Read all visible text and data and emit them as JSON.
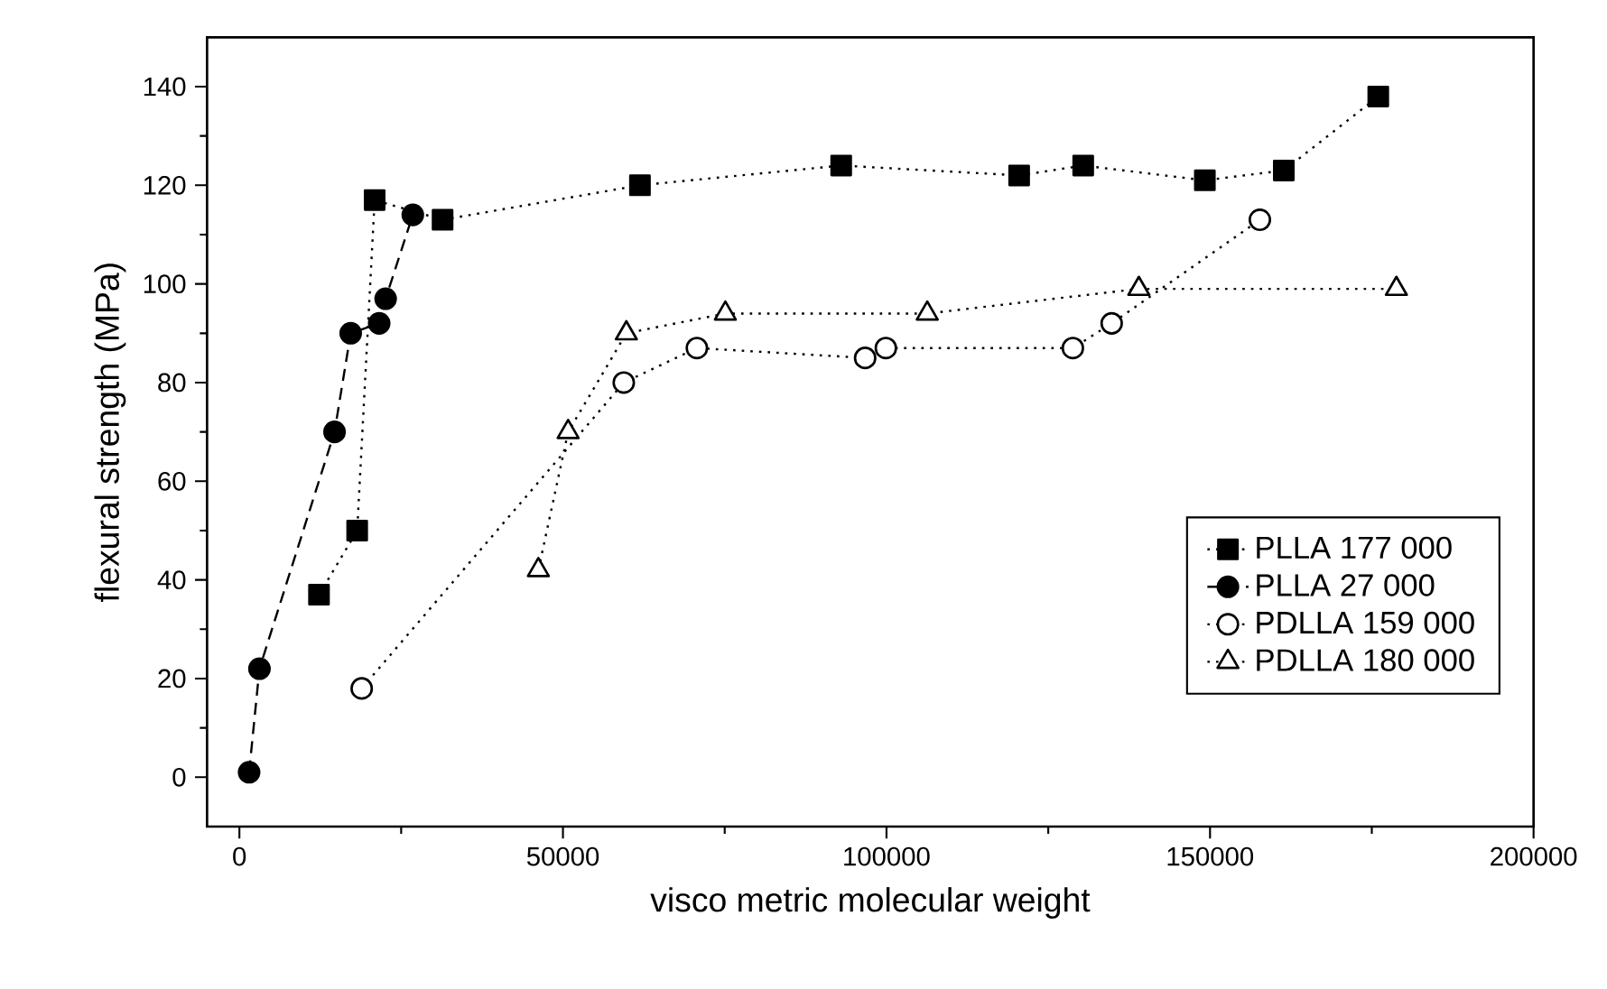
{
  "chart_data": {
    "type": "line",
    "xlabel": "visco  metric molecular weight",
    "ylabel": "flexural strength (MPa)",
    "xlim": [
      -5000,
      200000
    ],
    "xticks": [
      0,
      50000,
      100000,
      150000,
      200000
    ],
    "ylim": [
      -10,
      150
    ],
    "yticks": [
      0,
      20,
      40,
      60,
      80,
      100,
      120,
      140
    ],
    "legend": "right",
    "grid": false,
    "series": [
      {
        "name": "PLLA 177 000",
        "color": "#000000",
        "marker": "square",
        "line_style": "dotted",
        "x": [
          12300,
          18200,
          20900,
          31400,
          61900,
          93000,
          120500,
          130400,
          149200,
          161400,
          176000
        ],
        "values": [
          37,
          50,
          117,
          113,
          120,
          124,
          122,
          124,
          121,
          123,
          138
        ]
      },
      {
        "name": "PLLA 27 000",
        "color": "#000000",
        "marker": "circle",
        "line_style": "dashed",
        "x": [
          1500,
          3100,
          14700,
          17200,
          21600,
          22600,
          26800
        ],
        "values": [
          1,
          22,
          70,
          90,
          92,
          97,
          114
        ]
      },
      {
        "name": "PDLLA 159 000",
        "color": "#000000",
        "marker": "circle",
        "line_style": "dotted",
        "x": [
          18900,
          59400,
          70700,
          96700,
          99900,
          128800,
          134800,
          157700
        ],
        "values": [
          18,
          80,
          87,
          85,
          87,
          87,
          92,
          113
        ]
      },
      {
        "name": "PDLLA 180 000",
        "color": "#000000",
        "marker": "triangle",
        "line_style": "dotted",
        "x": [
          46200,
          50800,
          59800,
          75100,
          106300,
          139000,
          178800
        ],
        "values": [
          42,
          70,
          90,
          94,
          94,
          99,
          99
        ]
      }
    ]
  }
}
